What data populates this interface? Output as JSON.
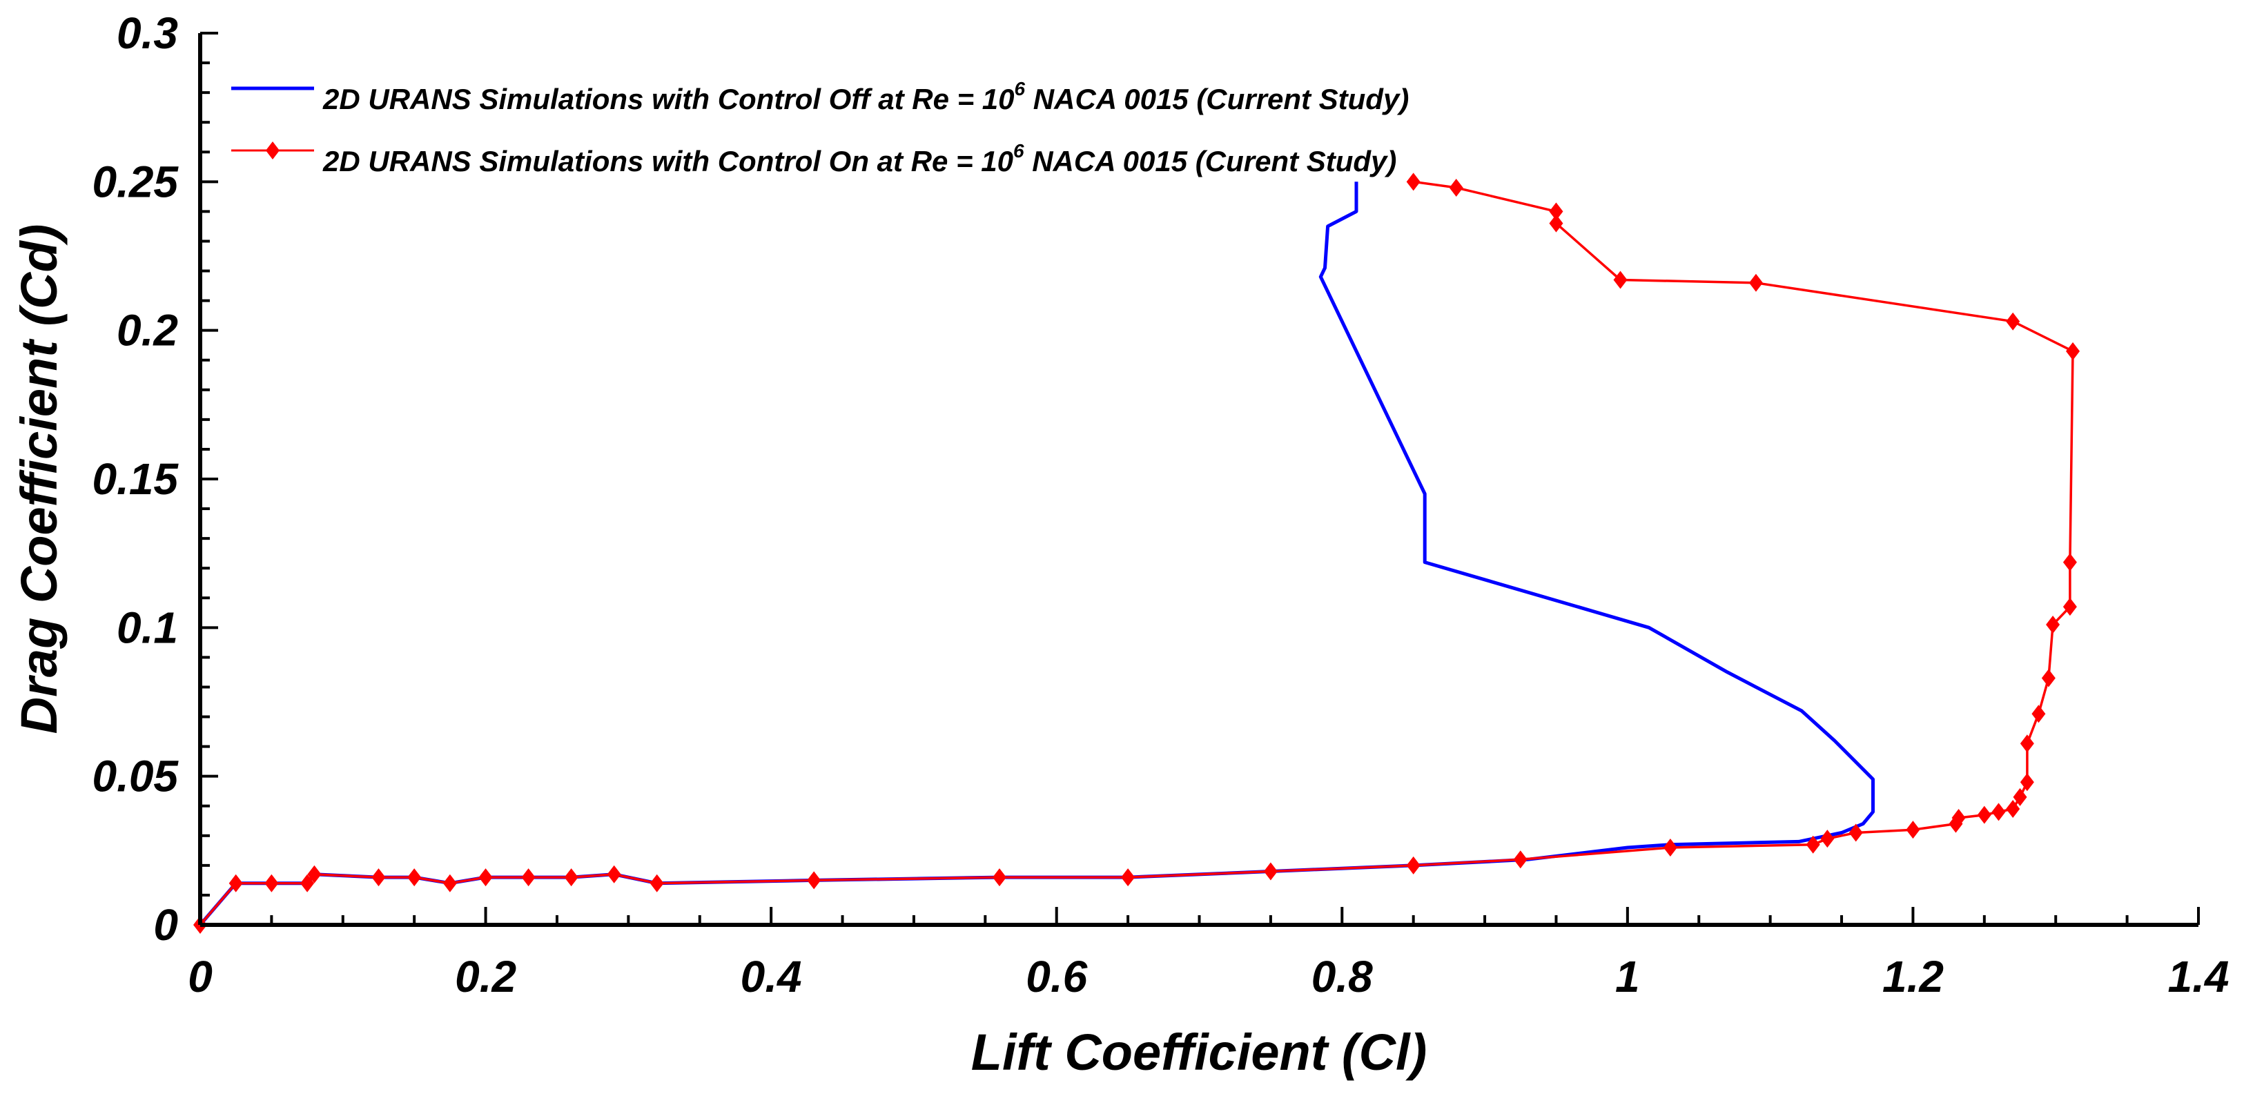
{
  "chart_data": {
    "type": "line",
    "xlabel": "Lift Coefficient (Cl)",
    "ylabel": "Drag Coefficient (Cd)",
    "xlim": [
      0,
      1.4
    ],
    "ylim": [
      0,
      0.3
    ],
    "x_ticks": [
      "0",
      "0.2",
      "0.4",
      "0.6",
      "0.8",
      "1",
      "1.2",
      "1.4"
    ],
    "y_ticks": [
      "0",
      "0.05",
      "0.1",
      "0.15",
      "0.2",
      "0.25",
      "0.3"
    ],
    "legend_position": "top-left",
    "series": [
      {
        "name": "2D URANS Simulations with Control Off at Re = 10^6 NACA 0015 (Current Study)",
        "legend_pre": "2D URANS Simulations with Control Off at Re = 10",
        "legend_sup": "6",
        "legend_post": " NACA 0015 (Current Study)",
        "color": "#0000ff",
        "marker": "none",
        "points": [
          [
            0,
            0
          ],
          [
            0.025,
            0.014
          ],
          [
            0.05,
            0.014
          ],
          [
            0.075,
            0.014
          ],
          [
            0.08,
            0.017
          ],
          [
            0.125,
            0.016
          ],
          [
            0.15,
            0.016
          ],
          [
            0.175,
            0.014
          ],
          [
            0.2,
            0.016
          ],
          [
            0.23,
            0.016
          ],
          [
            0.26,
            0.016
          ],
          [
            0.29,
            0.017
          ],
          [
            0.32,
            0.014
          ],
          [
            0.43,
            0.015
          ],
          [
            0.56,
            0.016
          ],
          [
            0.65,
            0.016
          ],
          [
            0.75,
            0.018
          ],
          [
            0.85,
            0.02
          ],
          [
            0.93,
            0.022
          ],
          [
            1.0,
            0.026
          ],
          [
            1.03,
            0.027
          ],
          [
            1.12,
            0.028
          ],
          [
            1.15,
            0.031
          ],
          [
            1.165,
            0.034
          ],
          [
            1.172,
            0.038
          ],
          [
            1.172,
            0.049
          ],
          [
            1.145,
            0.062
          ],
          [
            1.122,
            0.072
          ],
          [
            1.07,
            0.085
          ],
          [
            1.015,
            0.1
          ],
          [
            0.858,
            0.122
          ],
          [
            0.858,
            0.145
          ],
          [
            0.785,
            0.218
          ],
          [
            0.788,
            0.221
          ],
          [
            0.79,
            0.235
          ],
          [
            0.81,
            0.24
          ],
          [
            0.81,
            0.25
          ]
        ]
      },
      {
        "name": "2D URANS Simulations with Control On at Re = 10^6 NACA 0015 (Curent Study)",
        "legend_pre": "2D URANS Simulations with Control On at Re = 10",
        "legend_sup": "6",
        "legend_post": " NACA 0015 (Curent Study)",
        "color": "#ff0000",
        "marker": "diamond",
        "points": [
          [
            0,
            0
          ],
          [
            0.025,
            0.014
          ],
          [
            0.05,
            0.014
          ],
          [
            0.075,
            0.014
          ],
          [
            0.08,
            0.017
          ],
          [
            0.125,
            0.016
          ],
          [
            0.15,
            0.016
          ],
          [
            0.175,
            0.014
          ],
          [
            0.2,
            0.016
          ],
          [
            0.23,
            0.016
          ],
          [
            0.26,
            0.016
          ],
          [
            0.29,
            0.017
          ],
          [
            0.32,
            0.014
          ],
          [
            0.43,
            0.015
          ],
          [
            0.56,
            0.016
          ],
          [
            0.65,
            0.016
          ],
          [
            0.75,
            0.018
          ],
          [
            0.85,
            0.02
          ],
          [
            0.925,
            0.022
          ],
          [
            1.03,
            0.026
          ],
          [
            1.13,
            0.027
          ],
          [
            1.14,
            0.029
          ],
          [
            1.16,
            0.031
          ],
          [
            1.2,
            0.032
          ],
          [
            1.23,
            0.034
          ],
          [
            1.232,
            0.036
          ],
          [
            1.25,
            0.037
          ],
          [
            1.26,
            0.038
          ],
          [
            1.27,
            0.039
          ],
          [
            1.275,
            0.043
          ],
          [
            1.28,
            0.048
          ],
          [
            1.28,
            0.061
          ],
          [
            1.288,
            0.071
          ],
          [
            1.295,
            0.083
          ],
          [
            1.298,
            0.101
          ],
          [
            1.31,
            0.107
          ],
          [
            1.31,
            0.122
          ],
          [
            1.312,
            0.193
          ],
          [
            1.27,
            0.203
          ],
          [
            1.09,
            0.216
          ],
          [
            0.995,
            0.217
          ],
          [
            0.95,
            0.236
          ],
          [
            0.95,
            0.24
          ],
          [
            0.88,
            0.248
          ],
          [
            0.85,
            0.25
          ]
        ]
      }
    ]
  }
}
